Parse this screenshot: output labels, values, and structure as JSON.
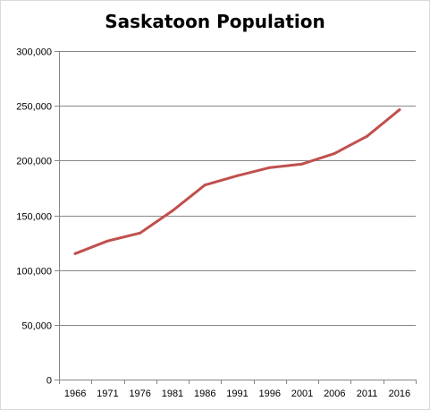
{
  "chart_data": {
    "type": "line",
    "title": "Saskatoon Population",
    "xlabel": "",
    "ylabel": "",
    "categories": [
      "1966",
      "1971",
      "1976",
      "1981",
      "1986",
      "1991",
      "1996",
      "2001",
      "2006",
      "2011",
      "2016"
    ],
    "series": [
      {
        "values": [
          115000,
          126500,
          133800,
          154200,
          177600,
          186100,
          193600,
          196800,
          206500,
          222200,
          246400
        ]
      }
    ],
    "ylim": [
      0,
      300000
    ],
    "yticks": [
      0,
      50000,
      100000,
      150000,
      200000,
      250000,
      300000
    ],
    "ytick_labels": [
      "0",
      "50,000",
      "100,000",
      "150,000",
      "200,000",
      "250,000",
      "300,000"
    ],
    "grid": "horizontal",
    "legend": "none",
    "colors": {
      "line": "#c0504d",
      "grid": "#868686",
      "axis": "#868686"
    }
  }
}
